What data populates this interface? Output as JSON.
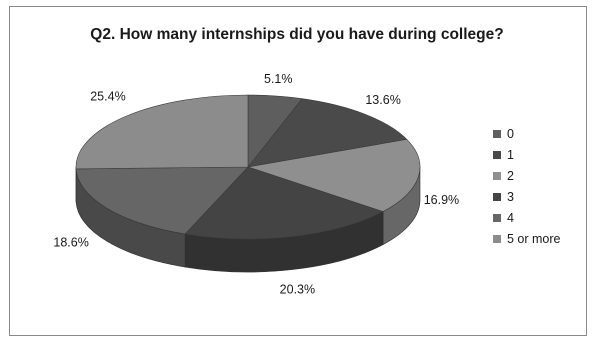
{
  "chart_data": {
    "type": "pie",
    "title": "Q2. How many internships did you have during college?",
    "categories": [
      "0",
      "1",
      "2",
      "3",
      "4",
      "5 or more"
    ],
    "values": [
      5.1,
      13.6,
      16.9,
      20.3,
      18.6,
      25.4
    ],
    "labels": [
      "5.1%",
      "13.6%",
      "16.9%",
      "20.3%",
      "18.6%",
      "25.4%"
    ],
    "colors": [
      "#5e5e5e",
      "#4a4a4a",
      "#8f8f8f",
      "#444444",
      "#666666",
      "#8c8c8c"
    ],
    "style": "3d",
    "legend": "right"
  }
}
